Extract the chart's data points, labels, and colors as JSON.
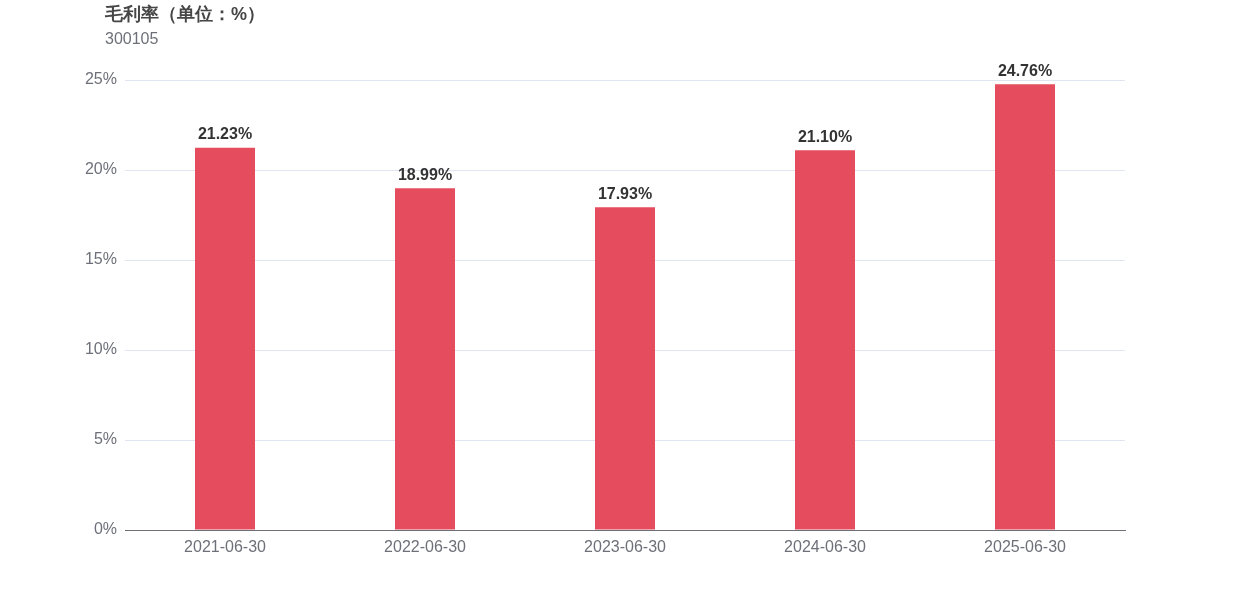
{
  "chart_data": {
    "type": "bar",
    "title": "毛利率（单位：%）",
    "subtitle": "300105",
    "categories": [
      "2021-06-30",
      "2022-06-30",
      "2023-06-30",
      "2024-06-30",
      "2025-06-30"
    ],
    "values": [
      21.23,
      18.99,
      17.93,
      21.1,
      24.76
    ],
    "value_labels": [
      "21.23%",
      "18.99%",
      "17.93%",
      "21.10%",
      "24.76%"
    ],
    "color": "#e54c5e",
    "ylim": [
      0,
      25
    ],
    "yticks": [
      {
        "value": 0,
        "label": "0%"
      },
      {
        "value": 5,
        "label": "5%"
      },
      {
        "value": 10,
        "label": "10%"
      },
      {
        "value": 15,
        "label": "15%"
      },
      {
        "value": 20,
        "label": "20%"
      },
      {
        "value": 25,
        "label": "25%"
      }
    ],
    "grid": "y",
    "legend": false
  }
}
